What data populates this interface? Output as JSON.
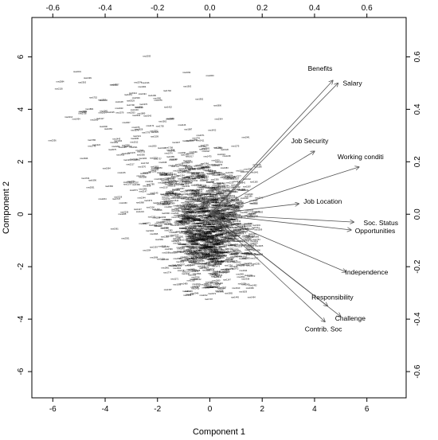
{
  "chart_data": {
    "type": "scatter",
    "subtype": "biplot",
    "title": "",
    "xlabel": "Component 1",
    "ylabel": "Component 2",
    "xlim": [
      -6.8,
      7.5
    ],
    "ylim": [
      -7.0,
      7.5
    ],
    "xticks": [
      -6,
      -4,
      -2,
      0,
      2,
      4,
      6
    ],
    "yticks": [
      -6,
      -4,
      -2,
      0,
      2,
      4,
      6
    ],
    "secondary_xlim": [
      -0.68,
      0.75
    ],
    "secondary_ylim": [
      -0.7,
      0.75
    ],
    "secondary_xticks": [
      -0.6,
      -0.4,
      -0.2,
      0.0,
      0.2,
      0.4,
      0.6
    ],
    "secondary_yticks": [
      -0.6,
      -0.4,
      -0.2,
      0.0,
      0.2,
      0.4,
      0.6
    ],
    "grid": false,
    "observations": {
      "description_note_removed": true,
      "color": "#000000",
      "approx_count": 1400
    },
    "loadings": [
      {
        "name": "Benefits",
        "x": 0.47,
        "y": 0.51
      },
      {
        "name": "Salary",
        "x": 0.49,
        "y": 0.5
      },
      {
        "name": "Job Security",
        "x": 0.4,
        "y": 0.24
      },
      {
        "name": "Working conditi",
        "x": 0.57,
        "y": 0.18
      },
      {
        "name": "Job Location",
        "x": 0.34,
        "y": 0.04
      },
      {
        "name": "Soc. Status",
        "x": 0.55,
        "y": -0.03
      },
      {
        "name": "Opportunities",
        "x": 0.54,
        "y": -0.06
      },
      {
        "name": "Independence",
        "x": 0.52,
        "y": -0.22
      },
      {
        "name": "Responsibility",
        "x": 0.45,
        "y": -0.35
      },
      {
        "name": "Challenge",
        "x": 0.5,
        "y": -0.39
      },
      {
        "name": "Contrib. Soc",
        "x": 0.44,
        "y": -0.41
      }
    ],
    "arrow_color": "#555555"
  }
}
